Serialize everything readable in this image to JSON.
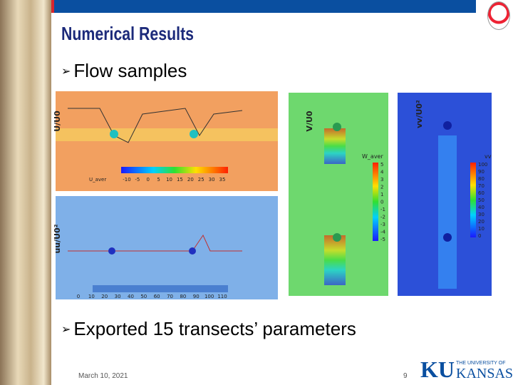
{
  "header": {
    "title": "Numerical Results"
  },
  "bullets": [
    "Flow samples",
    "Exported 15 transects’ parameters"
  ],
  "panels": [
    {
      "axis_label": "U/U0",
      "colorbar_label": "U_aver",
      "ticks": [
        "-10",
        "-5",
        "0",
        "5",
        "10",
        "15",
        "20",
        "25",
        "30",
        "35"
      ]
    },
    {
      "axis_label": "uu/U0²",
      "ticks": [
        "0",
        "10",
        "20",
        "30",
        "40",
        "50",
        "60",
        "70",
        "80",
        "90",
        "100",
        "110"
      ]
    },
    {
      "axis_label": "V/U0",
      "colorbar_label": "W_aver",
      "ticks": [
        "5",
        "4",
        "3",
        "2",
        "1",
        "0",
        "-1",
        "-2",
        "-3",
        "-4",
        "-5"
      ]
    },
    {
      "axis_label": "vv/U0²",
      "colorbar_label": "vv",
      "ticks": [
        "100",
        "90",
        "80",
        "70",
        "60",
        "50",
        "40",
        "30",
        "20",
        "10",
        "0"
      ]
    }
  ],
  "footer": {
    "date": "March 10, 2021",
    "page": "9",
    "logo_mark": "KU",
    "logo_line1": "THE UNIVERSITY OF",
    "logo_line2": "KANSAS"
  }
}
